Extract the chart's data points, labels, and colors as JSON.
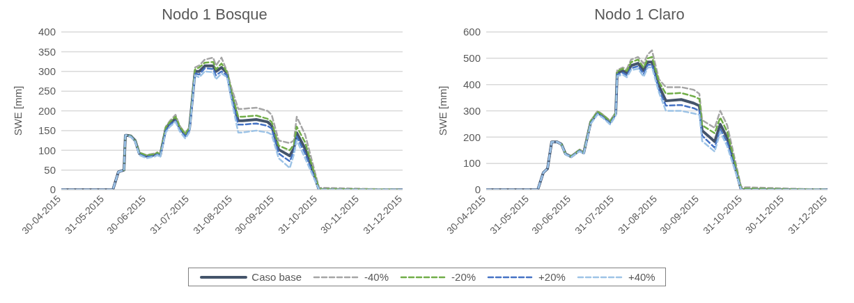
{
  "chart_data": [
    {
      "type": "line",
      "title": "Nodo 1 Bosque",
      "ylabel": "SWE [mm]",
      "legend": "bottom",
      "grid": "y",
      "marker": "none",
      "x": [
        "2015-04-30",
        "2015-06-06",
        "2015-06-10",
        "2015-06-14",
        "2015-06-15",
        "2015-06-16",
        "2015-06-19",
        "2015-06-22",
        "2015-06-25",
        "2015-06-30",
        "2015-07-06",
        "2015-07-08",
        "2015-07-10",
        "2015-07-14",
        "2015-07-17",
        "2015-07-21",
        "2015-07-24",
        "2015-07-28",
        "2015-07-31",
        "2015-08-04",
        "2015-08-07",
        "2015-08-11",
        "2015-08-17",
        "2015-08-19",
        "2015-08-23",
        "2015-08-27",
        "2015-08-30",
        "2015-09-04",
        "2015-09-07",
        "2015-09-17",
        "2015-09-25",
        "2015-09-28",
        "2015-10-03",
        "2015-10-11",
        "2015-10-14",
        "2015-10-16",
        "2015-10-22",
        "2015-11-01",
        "2015-12-31"
      ],
      "series": [
        {
          "name": "Caso base",
          "color": "#44546a",
          "line_style": "solid",
          "values": [
            0,
            0,
            45,
            50,
            138,
            138,
            136,
            125,
            92,
            85,
            88,
            92,
            87,
            155,
            170,
            180,
            157,
            139,
            155,
            300,
            300,
            314,
            314,
            300,
            310,
            296,
            242,
            175,
            175,
            178,
            172,
            163,
            102,
            86,
            105,
            144,
            104,
            0,
            0
          ]
        },
        {
          "name": "-40%",
          "color": "#a5a5a5",
          "line_style": "dashed",
          "values": [
            0,
            0,
            45,
            50,
            138,
            138,
            136,
            125,
            95,
            88,
            92,
            95,
            88,
            160,
            175,
            190,
            162,
            143,
            160,
            310,
            315,
            330,
            335,
            315,
            335,
            300,
            260,
            205,
            205,
            208,
            200,
            190,
            125,
            118,
            125,
            185,
            140,
            5,
            0
          ]
        },
        {
          "name": "-20%",
          "color": "#70ad47",
          "line_style": "dashed",
          "values": [
            null,
            null,
            null,
            50,
            138,
            138,
            136,
            125,
            94,
            87,
            90,
            94,
            88,
            158,
            172,
            185,
            160,
            141,
            158,
            305,
            310,
            322,
            324,
            305,
            320,
            298,
            250,
            185,
            185,
            188,
            180,
            172,
            112,
            100,
            115,
            160,
            120,
            2,
            0
          ]
        },
        {
          "name": "+20%",
          "color": "#4472c4",
          "line_style": "dashed",
          "values": [
            0,
            0,
            45,
            50,
            138,
            138,
            135,
            123,
            90,
            83,
            86,
            90,
            85,
            150,
            165,
            175,
            152,
            135,
            150,
            295,
            292,
            308,
            306,
            290,
            300,
            290,
            235,
            165,
            165,
            168,
            162,
            155,
            92,
            72,
            98,
            135,
            92,
            0,
            0
          ]
        },
        {
          "name": "+40%",
          "color": "#9dc3e6",
          "line_style": "dashed",
          "values": [
            0,
            0,
            45,
            50,
            138,
            138,
            134,
            122,
            88,
            80,
            84,
            88,
            82,
            145,
            160,
            172,
            148,
            130,
            146,
            290,
            285,
            300,
            298,
            280,
            295,
            285,
            230,
            145,
            145,
            150,
            145,
            140,
            80,
            55,
            90,
            125,
            80,
            0,
            0
          ]
        }
      ],
      "xlim": [
        "2015-04-30",
        "2015-12-31"
      ],
      "xticks": [
        {
          "value": "2015-04-30",
          "label": "30-04-2015"
        },
        {
          "value": "2015-05-31",
          "label": "31-05-2015"
        },
        {
          "value": "2015-06-30",
          "label": "30-06-2015"
        },
        {
          "value": "2015-07-31",
          "label": "31-07-2015"
        },
        {
          "value": "2015-08-31",
          "label": "31-08-2015"
        },
        {
          "value": "2015-09-30",
          "label": "30-09-2015"
        },
        {
          "value": "2015-10-31",
          "label": "31-10-2015"
        },
        {
          "value": "2015-11-30",
          "label": "30-11-2015"
        },
        {
          "value": "2015-12-31",
          "label": "31-12-2015"
        }
      ],
      "ylim": [
        0,
        400
      ],
      "yticks": [
        0,
        50,
        100,
        150,
        200,
        250,
        300,
        350,
        400
      ]
    },
    {
      "type": "line",
      "title": "Nodo 1 Claro",
      "ylabel": "SWE [mm]",
      "grid": "y",
      "marker": "none",
      "x": [
        "2015-04-30",
        "2015-06-06",
        "2015-06-10",
        "2015-06-13",
        "2015-06-16",
        "2015-06-20",
        "2015-06-23",
        "2015-06-26",
        "2015-06-30",
        "2015-07-06",
        "2015-07-09",
        "2015-07-14",
        "2015-07-19",
        "2015-07-23",
        "2015-07-28",
        "2015-08-01",
        "2015-08-02",
        "2015-08-06",
        "2015-08-09",
        "2015-08-12",
        "2015-08-17",
        "2015-08-21",
        "2015-08-24",
        "2015-08-27",
        "2015-09-01",
        "2015-09-06",
        "2015-09-17",
        "2015-09-26",
        "2015-09-30",
        "2015-10-02",
        "2015-10-11",
        "2015-10-15",
        "2015-10-20",
        "2015-10-30",
        "2015-12-31"
      ],
      "series": [
        {
          "color": "#44546a",
          "line_style": "solid",
          "values": [
            0,
            0,
            65,
            80,
            182,
            182,
            173,
            136,
            126,
            150,
            140,
            257,
            294,
            280,
            257,
            290,
            444,
            453,
            444,
            472,
            481,
            453,
            486,
            486,
            394,
            338,
            343,
            329,
            319,
            225,
            183,
            249,
            197,
            0,
            0
          ]
        },
        {
          "color": "#a5a5a5",
          "line_style": "dashed",
          "values": [
            0,
            0,
            65,
            80,
            182,
            182,
            173,
            136,
            128,
            152,
            142,
            262,
            300,
            285,
            262,
            295,
            455,
            465,
            460,
            495,
            505,
            480,
            515,
            530,
            420,
            390,
            390,
            380,
            365,
            265,
            235,
            300,
            245,
            10,
            0
          ]
        },
        {
          "color": "#70ad47",
          "line_style": "dashed",
          "values": [
            null,
            null,
            null,
            null,
            null,
            null,
            173,
            136,
            127,
            151,
            141,
            260,
            297,
            283,
            260,
            292,
            450,
            460,
            452,
            485,
            495,
            465,
            500,
            505,
            410,
            365,
            368,
            355,
            345,
            245,
            215,
            275,
            220,
            5,
            0
          ]
        },
        {
          "color": "#4472c4",
          "line_style": "dashed",
          "values": [
            0,
            0,
            65,
            80,
            182,
            182,
            173,
            135,
            125,
            148,
            138,
            253,
            290,
            275,
            252,
            285,
            438,
            445,
            435,
            462,
            470,
            440,
            475,
            475,
            380,
            320,
            322,
            310,
            300,
            205,
            160,
            230,
            180,
            0,
            0
          ]
        },
        {
          "color": "#9dc3e6",
          "line_style": "dashed",
          "values": [
            0,
            0,
            65,
            80,
            182,
            182,
            172,
            134,
            124,
            146,
            136,
            250,
            287,
            272,
            248,
            282,
            432,
            438,
            428,
            455,
            460,
            430,
            465,
            465,
            370,
            300,
            300,
            290,
            285,
            185,
            145,
            220,
            165,
            0,
            0
          ]
        }
      ],
      "xlim": [
        "2015-04-30",
        "2015-12-31"
      ],
      "xticks": [
        {
          "value": "2015-04-30",
          "label": "30-04-2015"
        },
        {
          "value": "2015-05-31",
          "label": "31-05-2015"
        },
        {
          "value": "2015-06-30",
          "label": "30-06-2015"
        },
        {
          "value": "2015-07-31",
          "label": "31-07-2015"
        },
        {
          "value": "2015-08-31",
          "label": "31-08-2015"
        },
        {
          "value": "2015-09-30",
          "label": "30-09-2015"
        },
        {
          "value": "2015-10-31",
          "label": "31-10-2015"
        },
        {
          "value": "2015-11-30",
          "label": "30-11-2015"
        },
        {
          "value": "2015-12-31",
          "label": "31-12-2015"
        }
      ],
      "ylim": [
        0,
        600
      ],
      "yticks": [
        0,
        100,
        200,
        300,
        400,
        500,
        600
      ]
    }
  ]
}
